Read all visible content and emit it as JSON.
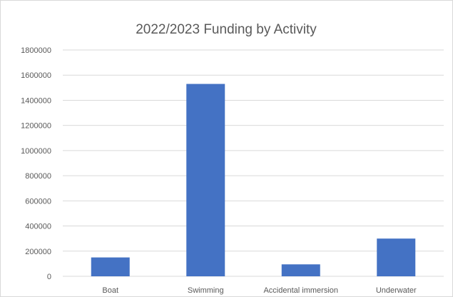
{
  "chart_data": {
    "type": "bar",
    "title": "2022/2023 Funding by Activity",
    "xlabel": "",
    "ylabel": "",
    "categories": [
      "Boat",
      "Swimming",
      "Accidental immersion",
      "Underwater"
    ],
    "values": [
      150000,
      1530000,
      95000,
      300000
    ],
    "ylim": [
      0,
      1800000
    ],
    "yticks": [
      "0",
      "200000",
      "400000",
      "600000",
      "800000",
      "1000000",
      "1200000",
      "1400000",
      "1600000",
      "1800000"
    ],
    "grid": true,
    "legend": "none",
    "bar_color": "#4472c4",
    "grid_color": "#d9d9d9"
  }
}
